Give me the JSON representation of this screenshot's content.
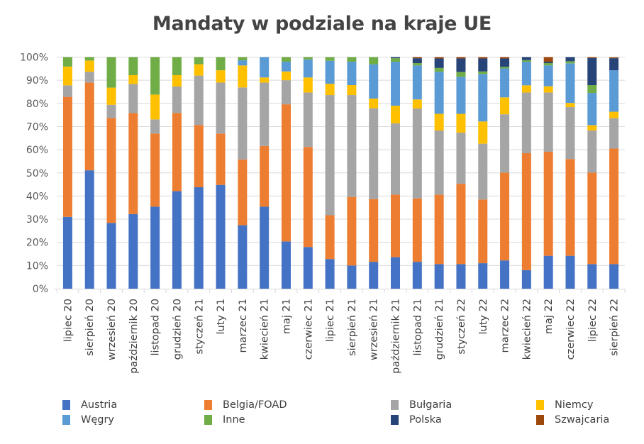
{
  "chart_data": {
    "type": "bar",
    "stacked": true,
    "normalized": true,
    "title": "Mandaty w podziale na kraje UE",
    "xlabel": "",
    "ylabel": "",
    "ylim": [
      0,
      100
    ],
    "yticks": [
      "0%",
      "10%",
      "20%",
      "30%",
      "40%",
      "50%",
      "60%",
      "70%",
      "80%",
      "90%",
      "100%"
    ],
    "grid": true,
    "legend_position": "bottom",
    "categories": [
      "lipiec 20",
      "sierpień 20",
      "wrzesień 20",
      "październik 20",
      "listopad 20",
      "grudzień 20",
      "styczeń 21",
      "luty 21",
      "marzec 21",
      "kwiecień 21",
      "maj 21",
      "czerwiec 21",
      "lipiec 21",
      "sierpień 21",
      "wrzesień 21",
      "październik 21",
      "listopad 21",
      "grudzień 21",
      "styczeń 22",
      "luty 22",
      "marzec 22",
      "kwiecień 22",
      "maj 22",
      "czerwiec 22",
      "lipiec 22",
      "sierpień 22"
    ],
    "series": [
      {
        "name": "Austria",
        "color": "#4472C4",
        "values": [
          31.0,
          51.1,
          28.4,
          32.2,
          35.4,
          42.1,
          43.8,
          44.8,
          27.4,
          35.4,
          20.4,
          18.0,
          12.8,
          10.0,
          11.6,
          13.6,
          11.6,
          10.6,
          10.6,
          11.0,
          12.2,
          8.0,
          14.2,
          14.2,
          10.6,
          10.6
        ]
      },
      {
        "name": "Belgia/FOAD",
        "color": "#ED7D31",
        "values": [
          51.8,
          37.9,
          45.3,
          43.6,
          31.6,
          33.8,
          26.9,
          22.2,
          28.4,
          26.2,
          59.2,
          43.2,
          18.9,
          29.6,
          27.1,
          27.0,
          27.4,
          30.0,
          34.7,
          27.5,
          37.9,
          50.5,
          44.9,
          41.8,
          39.5,
          49.9
        ]
      },
      {
        "name": "Bułgaria",
        "color": "#A5A5A5",
        "values": [
          5.0,
          4.7,
          5.7,
          12.6,
          6.1,
          11.4,
          21.3,
          22.0,
          31.1,
          27.4,
          10.4,
          23.5,
          51.9,
          44.0,
          39.2,
          30.8,
          38.8,
          27.7,
          22.1,
          24.1,
          25.2,
          26.2,
          25.6,
          22.4,
          18.2,
          13.1
        ]
      },
      {
        "name": "Niemcy",
        "color": "#FFC000",
        "values": [
          8.1,
          4.8,
          7.4,
          3.8,
          10.7,
          4.9,
          4.9,
          5.3,
          9.5,
          2.2,
          3.8,
          6.5,
          4.9,
          4.3,
          4.2,
          7.6,
          3.9,
          7.2,
          8.1,
          9.6,
          7.3,
          3.1,
          2.7,
          1.8,
          2.3,
          2.8
        ]
      },
      {
        "name": "Węgry",
        "color": "#5B9BD5",
        "values": [
          0,
          0,
          0,
          0,
          0,
          0,
          0,
          0,
          2.2,
          8.8,
          4.2,
          7.8,
          9.9,
          10.1,
          14.8,
          19.0,
          14.7,
          18.2,
          16.0,
          20.5,
          12.5,
          10.2,
          9.0,
          17.1,
          13.9,
          17.9
        ]
      },
      {
        "name": "Inne",
        "color": "#70AD47",
        "values": [
          4.1,
          1.5,
          13.2,
          7.8,
          16.2,
          7.8,
          3.1,
          5.7,
          1.4,
          0,
          2.0,
          1.0,
          1.6,
          2.0,
          3.1,
          1.5,
          1.0,
          1.6,
          2.1,
          1.1,
          0.7,
          0.7,
          1.0,
          0.9,
          3.4,
          0
        ]
      },
      {
        "name": "Polska",
        "color": "#264478",
        "values": [
          0,
          0,
          0,
          0,
          0,
          0,
          0,
          0,
          0,
          0,
          0,
          0,
          0,
          0,
          0,
          0.5,
          2.1,
          4.1,
          5.8,
          5.6,
          3.6,
          1.3,
          0.6,
          1.8,
          11.7,
          5.2
        ]
      },
      {
        "name": "Szwajcaria",
        "color": "#9E480E",
        "values": [
          0,
          0,
          0,
          0,
          0,
          0,
          0,
          0,
          0,
          0,
          0,
          0,
          0,
          0,
          0,
          0,
          0.5,
          0.6,
          0.6,
          0.6,
          0.6,
          0,
          2.0,
          0,
          0.4,
          0.4
        ]
      }
    ]
  }
}
